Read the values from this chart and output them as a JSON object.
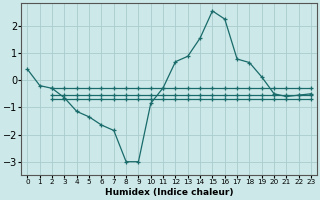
{
  "xlabel": "Humidex (Indice chaleur)",
  "bg_color": "#cce8e8",
  "grid_color": "#aacccc",
  "line_color": "#1a6b6b",
  "xlim": [
    -0.5,
    23.5
  ],
  "ylim": [
    -3.5,
    2.85
  ],
  "yticks": [
    -3,
    -2,
    -1,
    0,
    1,
    2
  ],
  "xticks": [
    0,
    1,
    2,
    3,
    4,
    5,
    6,
    7,
    8,
    9,
    10,
    11,
    12,
    13,
    14,
    15,
    16,
    17,
    18,
    19,
    20,
    21,
    22,
    23
  ],
  "lines": [
    {
      "x": [
        0,
        1,
        2,
        3,
        4,
        5,
        6,
        7,
        8,
        9,
        10,
        11,
        12,
        13,
        14,
        15,
        16,
        17,
        18,
        19,
        20,
        21,
        22,
        23
      ],
      "y": [
        0.4,
        -0.2,
        -0.3,
        -0.65,
        -1.15,
        -1.35,
        -1.65,
        -1.85,
        -3.0,
        -3.0,
        -0.85,
        -0.28,
        0.68,
        0.88,
        1.55,
        2.55,
        2.25,
        0.78,
        0.65,
        0.12,
        -0.5,
        -0.6,
        -0.55,
        -0.5
      ]
    },
    {
      "x": [
        2,
        3,
        4,
        5,
        6,
        7,
        8,
        9,
        10,
        11,
        12,
        13,
        14,
        15,
        16,
        17,
        18,
        19,
        20,
        21,
        22,
        23
      ],
      "y": [
        -0.28,
        -0.28,
        -0.28,
        -0.28,
        -0.28,
        -0.28,
        -0.28,
        -0.28,
        -0.28,
        -0.28,
        -0.28,
        -0.28,
        -0.28,
        -0.28,
        -0.28,
        -0.28,
        -0.28,
        -0.28,
        -0.28,
        -0.28,
        -0.28,
        -0.28
      ]
    },
    {
      "x": [
        2,
        3,
        4,
        5,
        6,
        7,
        8,
        9,
        10,
        11,
        12,
        13,
        14,
        15,
        16,
        17,
        18,
        19,
        20,
        21,
        22,
        23
      ],
      "y": [
        -0.55,
        -0.55,
        -0.55,
        -0.55,
        -0.55,
        -0.55,
        -0.55,
        -0.55,
        -0.55,
        -0.55,
        -0.55,
        -0.55,
        -0.55,
        -0.55,
        -0.55,
        -0.55,
        -0.55,
        -0.55,
        -0.55,
        -0.55,
        -0.55,
        -0.55
      ]
    },
    {
      "x": [
        2,
        3,
        4,
        5,
        6,
        7,
        8,
        9,
        10,
        11,
        12,
        13,
        14,
        15,
        16,
        17,
        18,
        19,
        20,
        21,
        22,
        23
      ],
      "y": [
        -0.68,
        -0.68,
        -0.68,
        -0.68,
        -0.68,
        -0.68,
        -0.68,
        -0.68,
        -0.68,
        -0.68,
        -0.68,
        -0.68,
        -0.68,
        -0.68,
        -0.68,
        -0.68,
        -0.68,
        -0.68,
        -0.68,
        -0.68,
        -0.68,
        -0.68
      ]
    }
  ]
}
